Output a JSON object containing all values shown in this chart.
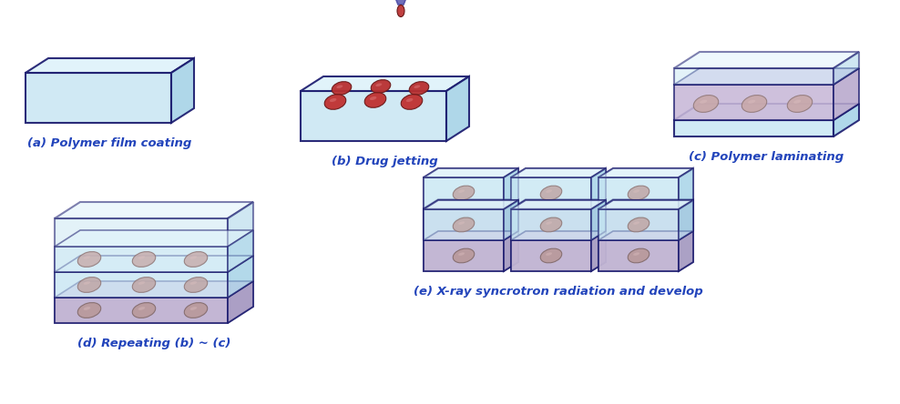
{
  "bg_color": "#ffffff",
  "label_color": "#2244bb",
  "box_face_color": "#cce8f4",
  "box_top_color": "#dff2fa",
  "box_side_color": "#a8d4e8",
  "box_edge_color": "#1a1a6e",
  "purple_face": "#c8b8d8",
  "purple_top": "#d8c8e8",
  "purple_side": "#b0a0c8",
  "drug_dark1": "#b83030",
  "drug_dark2": "#701818",
  "drug_light1": "#c8a8a8",
  "drug_light2": "#907878",
  "nozzle_body": "#9090cc",
  "nozzle_edge": "#5555aa",
  "drop_color": "#c04040",
  "labels": [
    "(a) Polymer film coating",
    "(b) Drug jetting",
    "(c) Polymer laminating",
    "(d) Repeating (b) ~ (c)",
    "(e) X-ray syncrotron radiation and develop"
  ],
  "label_fontsize": 9.5
}
